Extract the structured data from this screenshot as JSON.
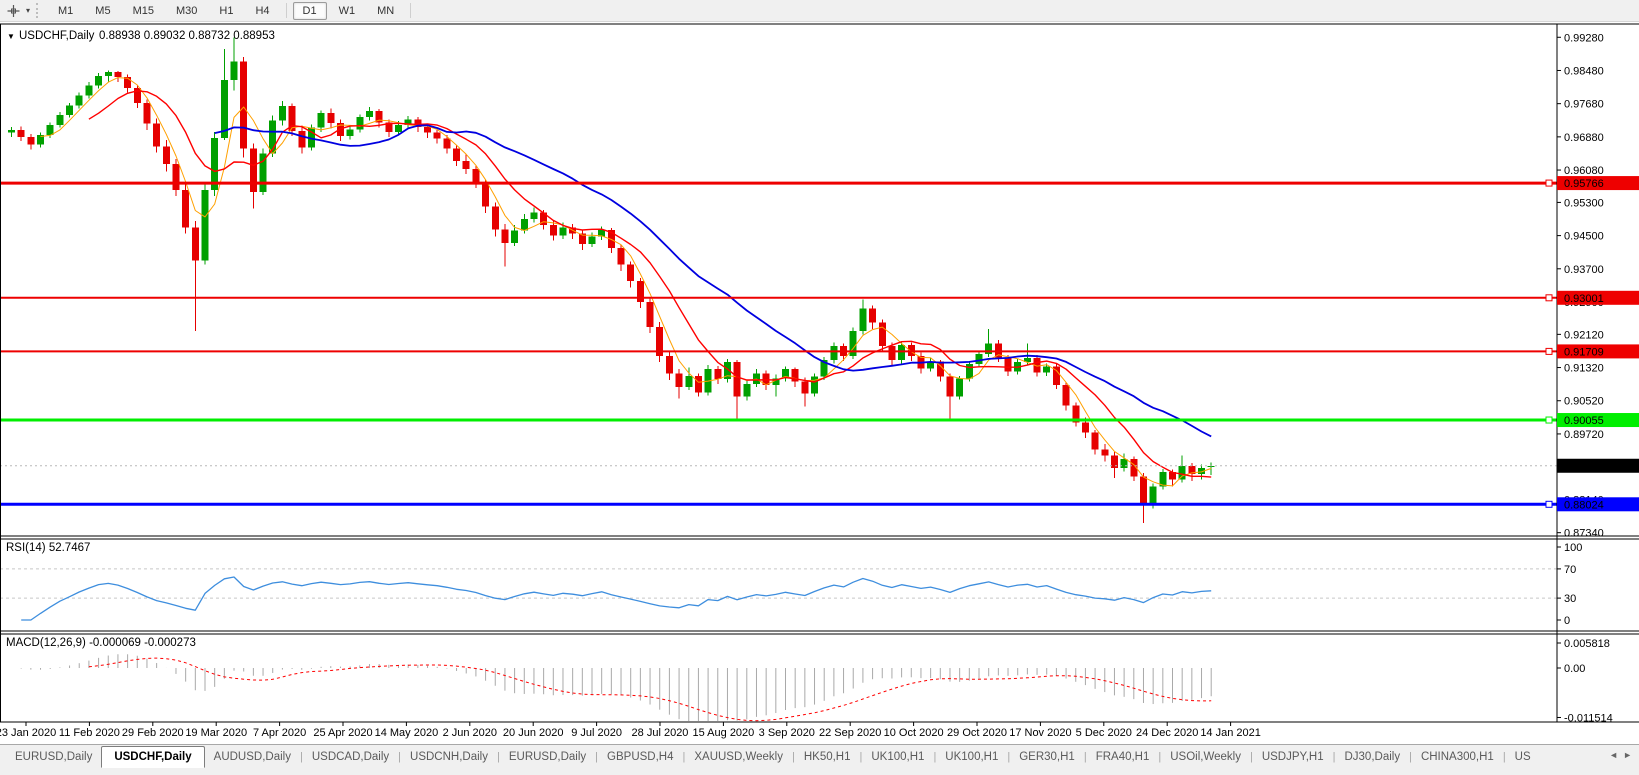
{
  "toolbar": {
    "periods": [
      "M1",
      "M5",
      "M15",
      "M30",
      "H1",
      "H4",
      "D1",
      "W1",
      "MN"
    ],
    "active_period": "D1"
  },
  "main_chart": {
    "dropdown_glyph": "▼",
    "title": "USDCHF,Daily",
    "ohlc": "0.88938 0.89032 0.88732 0.88953"
  },
  "rsi_panel": {
    "label": "RSI(14) 52.7467",
    "ticks": [
      100,
      70,
      30,
      0
    ],
    "levels": [
      70,
      30
    ]
  },
  "macd_panel": {
    "label": "MACD(12,26,9) -0.000069 -0.000273",
    "ticks": [
      "0.005818",
      "0.00",
      "-0.011514"
    ]
  },
  "chart_data": {
    "type": "candlestick",
    "symbol": "USDCHF",
    "timeframe": "Daily",
    "title": "USDCHF,Daily 0.88938 0.89032 0.88732 0.88953",
    "ylim": [
      0.8726,
      0.996
    ],
    "y_ticks": [
      "0.99280",
      "0.98480",
      "0.97680",
      "0.96880",
      "0.96080",
      "0.95300",
      "0.94500",
      "0.93700",
      "0.92900",
      "0.92120",
      "0.91320",
      "0.90520",
      "0.89720",
      "0.88920",
      "0.88140",
      "0.87340"
    ],
    "x_labels": [
      "23 Jan 2020",
      "11 Feb 2020",
      "29 Feb 2020",
      "19 Mar 2020",
      "7 Apr 2020",
      "25 Apr 2020",
      "14 May 2020",
      "2 Jun 2020",
      "20 Jun 2020",
      "9 Jul 2020",
      "28 Jul 2020",
      "15 Aug 2020",
      "3 Sep 2020",
      "22 Sep 2020",
      "10 Oct 2020",
      "29 Oct 2020",
      "17 Nov 2020",
      "5 Dec 2020",
      "24 Dec 2020",
      "14 Jan 2021"
    ],
    "hlines": [
      {
        "price": 0.95766,
        "label": "0.95766",
        "color": "#ee0000",
        "text_color": "#ffffff",
        "thickness": 3
      },
      {
        "price": 0.93001,
        "label": "0.93001",
        "color": "#ee0000",
        "text_color": "#ffffff",
        "thickness": 2
      },
      {
        "price": 0.91709,
        "label": "0.91709",
        "color": "#ee0000",
        "text_color": "#ffffff",
        "thickness": 2
      },
      {
        "price": 0.90055,
        "label": "0.90055",
        "color": "#00ee00",
        "text_color": "#000000",
        "thickness": 3
      },
      {
        "price": 0.88024,
        "label": "0.88024",
        "color": "#0000ff",
        "text_color": "#ffffff",
        "thickness": 3
      }
    ],
    "current_price": {
      "value": 0.88953,
      "label": "0.88953",
      "bg": "#000000",
      "text_color": "#ffffff"
    },
    "colors": {
      "up": "#00a000",
      "down": "#e60000",
      "ma_fast": "#ffa000",
      "ma_mid": "#ff0000",
      "ma_slow": "#0000e0",
      "rsi": "#3e8ede",
      "macd_hist": "#a9a9a9",
      "macd_signal": "#ff0000",
      "rsi_level": "#c8c8c8",
      "current_line": "#b8b8b8"
    },
    "ma_periods": {
      "fast": 4,
      "mid": 9,
      "slow": 22
    },
    "indicators": [
      {
        "name": "RSI",
        "period": 14,
        "value": 52.7467
      },
      {
        "name": "MACD",
        "params": "12,26,9",
        "values": [
          -6.9e-05,
          -0.000273
        ]
      }
    ],
    "candles": [
      [
        0.9698,
        0.9712,
        0.9688,
        0.9705
      ],
      [
        0.9705,
        0.9713,
        0.9678,
        0.9688
      ],
      [
        0.9688,
        0.9695,
        0.9658,
        0.967
      ],
      [
        0.967,
        0.9698,
        0.9662,
        0.9692
      ],
      [
        0.9692,
        0.9722,
        0.9685,
        0.9716
      ],
      [
        0.9716,
        0.9748,
        0.971,
        0.9741
      ],
      [
        0.9741,
        0.977,
        0.9735,
        0.9763
      ],
      [
        0.9763,
        0.9795,
        0.9756,
        0.9788
      ],
      [
        0.9788,
        0.982,
        0.978,
        0.9812
      ],
      [
        0.9812,
        0.9842,
        0.9805,
        0.9835
      ],
      [
        0.9835,
        0.9848,
        0.9822,
        0.9844
      ],
      [
        0.9844,
        0.9847,
        0.982,
        0.9832
      ],
      [
        0.9832,
        0.9838,
        0.9795,
        0.9806
      ],
      [
        0.9806,
        0.9812,
        0.9758,
        0.977
      ],
      [
        0.977,
        0.9778,
        0.9705,
        0.972
      ],
      [
        0.972,
        0.9732,
        0.965,
        0.9665
      ],
      [
        0.9665,
        0.968,
        0.9605,
        0.9622
      ],
      [
        0.9622,
        0.9635,
        0.9545,
        0.956
      ],
      [
        0.956,
        0.958,
        0.9455,
        0.947
      ],
      [
        0.947,
        0.9485,
        0.922,
        0.939
      ],
      [
        0.939,
        0.9575,
        0.938,
        0.956
      ],
      [
        0.956,
        0.97,
        0.9545,
        0.9685
      ],
      [
        0.9685,
        0.99,
        0.968,
        0.9825
      ],
      [
        0.9825,
        0.9928,
        0.98,
        0.987
      ],
      [
        0.987,
        0.988,
        0.9638,
        0.966
      ],
      [
        0.966,
        0.9672,
        0.9515,
        0.9555
      ],
      [
        0.9555,
        0.966,
        0.9548,
        0.9648
      ],
      [
        0.9648,
        0.974,
        0.964,
        0.9728
      ],
      [
        0.9728,
        0.9775,
        0.9715,
        0.9762
      ],
      [
        0.9762,
        0.9768,
        0.969,
        0.9702
      ],
      [
        0.9702,
        0.9715,
        0.9648,
        0.9662
      ],
      [
        0.9662,
        0.9718,
        0.9655,
        0.971
      ],
      [
        0.971,
        0.9752,
        0.97,
        0.9745
      ],
      [
        0.9745,
        0.9756,
        0.9708,
        0.9721
      ],
      [
        0.9721,
        0.973,
        0.9678,
        0.969
      ],
      [
        0.969,
        0.9716,
        0.9682,
        0.9706
      ],
      [
        0.9706,
        0.9742,
        0.9698,
        0.9736
      ],
      [
        0.9736,
        0.976,
        0.9728,
        0.975
      ],
      [
        0.975,
        0.9755,
        0.971,
        0.9722
      ],
      [
        0.9722,
        0.973,
        0.9688,
        0.97
      ],
      [
        0.97,
        0.9726,
        0.9692,
        0.9716
      ],
      [
        0.9716,
        0.9738,
        0.9708,
        0.973
      ],
      [
        0.973,
        0.9736,
        0.97,
        0.9712
      ],
      [
        0.9712,
        0.972,
        0.9685,
        0.9698
      ],
      [
        0.9698,
        0.9705,
        0.9672,
        0.9684
      ],
      [
        0.9684,
        0.9692,
        0.9648,
        0.966
      ],
      [
        0.966,
        0.9668,
        0.9618,
        0.963
      ],
      [
        0.963,
        0.9645,
        0.9598,
        0.961
      ],
      [
        0.961,
        0.9618,
        0.9565,
        0.9578
      ],
      [
        0.9578,
        0.9585,
        0.9505,
        0.952
      ],
      [
        0.952,
        0.953,
        0.9448,
        0.9465
      ],
      [
        0.9465,
        0.9478,
        0.9375,
        0.9432
      ],
      [
        0.9432,
        0.9475,
        0.9425,
        0.9462
      ],
      [
        0.9462,
        0.9502,
        0.9455,
        0.949
      ],
      [
        0.949,
        0.9518,
        0.9482,
        0.9506
      ],
      [
        0.9506,
        0.9512,
        0.9465,
        0.9476
      ],
      [
        0.9476,
        0.9488,
        0.9438,
        0.945
      ],
      [
        0.945,
        0.9482,
        0.9442,
        0.947
      ],
      [
        0.947,
        0.9478,
        0.9442,
        0.9455
      ],
      [
        0.9455,
        0.9462,
        0.9415,
        0.943
      ],
      [
        0.943,
        0.9458,
        0.9422,
        0.9448
      ],
      [
        0.9448,
        0.9472,
        0.944,
        0.9464
      ],
      [
        0.9464,
        0.9468,
        0.9408,
        0.942
      ],
      [
        0.942,
        0.9428,
        0.9365,
        0.938
      ],
      [
        0.938,
        0.9388,
        0.9325,
        0.934
      ],
      [
        0.934,
        0.9348,
        0.9275,
        0.929
      ],
      [
        0.929,
        0.9298,
        0.9215,
        0.923
      ],
      [
        0.923,
        0.9242,
        0.9145,
        0.916
      ],
      [
        0.916,
        0.9172,
        0.9102,
        0.9118
      ],
      [
        0.9118,
        0.9128,
        0.9057,
        0.9085
      ],
      [
        0.9085,
        0.9132,
        0.9078,
        0.9112
      ],
      [
        0.9112,
        0.9118,
        0.9062,
        0.9072
      ],
      [
        0.9072,
        0.9138,
        0.9065,
        0.9128
      ],
      [
        0.9128,
        0.9136,
        0.9092,
        0.9104
      ],
      [
        0.9104,
        0.9152,
        0.9096,
        0.9145
      ],
      [
        0.9145,
        0.915,
        0.9006,
        0.9062
      ],
      [
        0.9062,
        0.91,
        0.9052,
        0.9092
      ],
      [
        0.9092,
        0.9128,
        0.9085,
        0.9118
      ],
      [
        0.9118,
        0.9125,
        0.9078,
        0.909
      ],
      [
        0.909,
        0.9115,
        0.9062,
        0.9106
      ],
      [
        0.9106,
        0.9135,
        0.9098,
        0.9128
      ],
      [
        0.9128,
        0.9132,
        0.9085,
        0.9098
      ],
      [
        0.9098,
        0.9108,
        0.9038,
        0.907
      ],
      [
        0.907,
        0.9118,
        0.9062,
        0.911
      ],
      [
        0.911,
        0.9158,
        0.9102,
        0.915
      ],
      [
        0.915,
        0.9192,
        0.9142,
        0.9184
      ],
      [
        0.9184,
        0.919,
        0.9148,
        0.916
      ],
      [
        0.916,
        0.9228,
        0.9152,
        0.922
      ],
      [
        0.922,
        0.9296,
        0.9212,
        0.9274
      ],
      [
        0.9274,
        0.9282,
        0.9225,
        0.924
      ],
      [
        0.924,
        0.9248,
        0.9172,
        0.9184
      ],
      [
        0.9184,
        0.9192,
        0.9138,
        0.915
      ],
      [
        0.915,
        0.9195,
        0.9142,
        0.9186
      ],
      [
        0.9186,
        0.9192,
        0.9148,
        0.916
      ],
      [
        0.916,
        0.9168,
        0.9118,
        0.913
      ],
      [
        0.913,
        0.9155,
        0.9122,
        0.9146
      ],
      [
        0.9146,
        0.915,
        0.9098,
        0.911
      ],
      [
        0.911,
        0.9118,
        0.9008,
        0.9062
      ],
      [
        0.9062,
        0.9112,
        0.9055,
        0.9105
      ],
      [
        0.9105,
        0.9148,
        0.9098,
        0.914
      ],
      [
        0.914,
        0.9172,
        0.9132,
        0.9165
      ],
      [
        0.9165,
        0.9225,
        0.9158,
        0.919
      ],
      [
        0.919,
        0.9198,
        0.9145,
        0.9156
      ],
      [
        0.9156,
        0.9162,
        0.9112,
        0.9122
      ],
      [
        0.9122,
        0.9152,
        0.9115,
        0.9145
      ],
      [
        0.9145,
        0.919,
        0.9138,
        0.9155
      ],
      [
        0.9155,
        0.9162,
        0.911,
        0.912
      ],
      [
        0.912,
        0.9142,
        0.9112,
        0.9135
      ],
      [
        0.9135,
        0.914,
        0.908,
        0.909
      ],
      [
        0.909,
        0.9096,
        0.9028,
        0.904
      ],
      [
        0.904,
        0.9048,
        0.899,
        0.9
      ],
      [
        0.9,
        0.9012,
        0.8962,
        0.8975
      ],
      [
        0.8975,
        0.8982,
        0.8922,
        0.8935
      ],
      [
        0.8935,
        0.8948,
        0.8905,
        0.892
      ],
      [
        0.892,
        0.8928,
        0.8866,
        0.889
      ],
      [
        0.889,
        0.8925,
        0.8882,
        0.8912
      ],
      [
        0.8912,
        0.8918,
        0.8858,
        0.887
      ],
      [
        0.887,
        0.8878,
        0.8757,
        0.88
      ],
      [
        0.88,
        0.8852,
        0.8792,
        0.8845
      ],
      [
        0.8845,
        0.8888,
        0.8838,
        0.888
      ],
      [
        0.888,
        0.8886,
        0.8845,
        0.8862
      ],
      [
        0.8862,
        0.892,
        0.8855,
        0.8895
      ],
      [
        0.8895,
        0.8902,
        0.8858,
        0.8875
      ],
      [
        0.8875,
        0.8898,
        0.8862,
        0.889
      ],
      [
        0.88938,
        0.89032,
        0.88732,
        0.88953
      ]
    ]
  },
  "tabs": {
    "active_index": 1,
    "items": [
      "EURUSD,Daily",
      "USDCHF,Daily",
      "AUDUSD,Daily",
      "USDCAD,Daily",
      "USDCNH,Daily",
      "EURUSD,Daily",
      "GBPUSD,H4",
      "XAUUSD,Weekly",
      "HK50,H1",
      "UK100,H1",
      "UK100,H1",
      "GER30,H1",
      "FRA40,H1",
      "USOil,Weekly",
      "USDJPY,H1",
      "DJ30,Daily",
      "CHINA300,H1",
      "US"
    ],
    "scroll_left_glyph": "◄",
    "scroll_right_glyph": "►"
  }
}
